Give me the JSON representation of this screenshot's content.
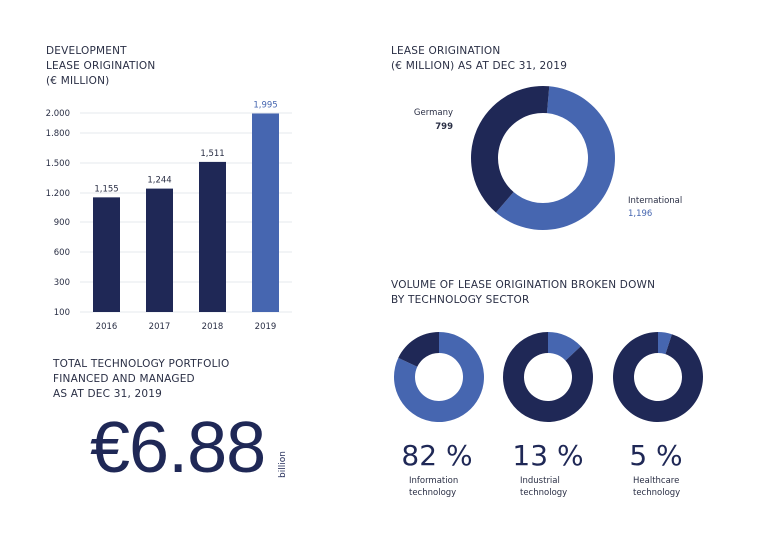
{
  "colors": {
    "dark": "#1f2856",
    "blue": "#4666b0",
    "grid": "#e6e8ee",
    "text": "#2a2f45"
  },
  "chart_data": [
    {
      "type": "bar",
      "title": "DEVELOPMENT\nLEASE ORIGINATION\n(€ MILLION)",
      "categories": [
        "2016",
        "2017",
        "2018",
        "2019"
      ],
      "values": [
        1155,
        1244,
        1511,
        1995
      ],
      "data_labels": [
        "1,155",
        "1,244",
        "1,511",
        "1,995"
      ],
      "bar_colors": [
        "#1f2856",
        "#1f2856",
        "#1f2856",
        "#4666b0"
      ],
      "yticks": [
        100,
        300,
        600,
        900,
        1200,
        1500,
        1800,
        2000
      ],
      "ytick_labels": [
        "100",
        "300",
        "600",
        "900",
        "1.200",
        "1.500",
        "1.800",
        "2.000"
      ],
      "ylim": [
        100,
        2000
      ],
      "grid": true
    },
    {
      "type": "pie",
      "donut": true,
      "title": "LEASE ORIGINATION\n(€ MILLION) AS AT DEC 31, 2019",
      "slices": [
        {
          "name": "International",
          "value": 1196,
          "label": "1,196",
          "color": "#4666b0"
        },
        {
          "name": "Germany",
          "value": 799,
          "label": "799",
          "color": "#1f2856"
        }
      ]
    },
    {
      "type": "pie",
      "donut": true,
      "title": "VOLUME OF LEASE ORIGINATION BROKEN DOWN\nBY TECHNOLOGY SECTOR",
      "items": [
        {
          "name": "Information\ntechnology",
          "value": 82,
          "label": "82 %"
        },
        {
          "name": "Industrial\ntechnology",
          "value": 13,
          "label": "13 %"
        },
        {
          "name": "Healthcare\ntechnology",
          "value": 5,
          "label": "5 %"
        }
      ]
    }
  ],
  "portfolio": {
    "title": "TOTAL TECHNOLOGY PORTFOLIO\nFINANCED AND MANAGED\nAS AT DEC 31, 2019",
    "value": "€6.88",
    "unit": "billion"
  }
}
